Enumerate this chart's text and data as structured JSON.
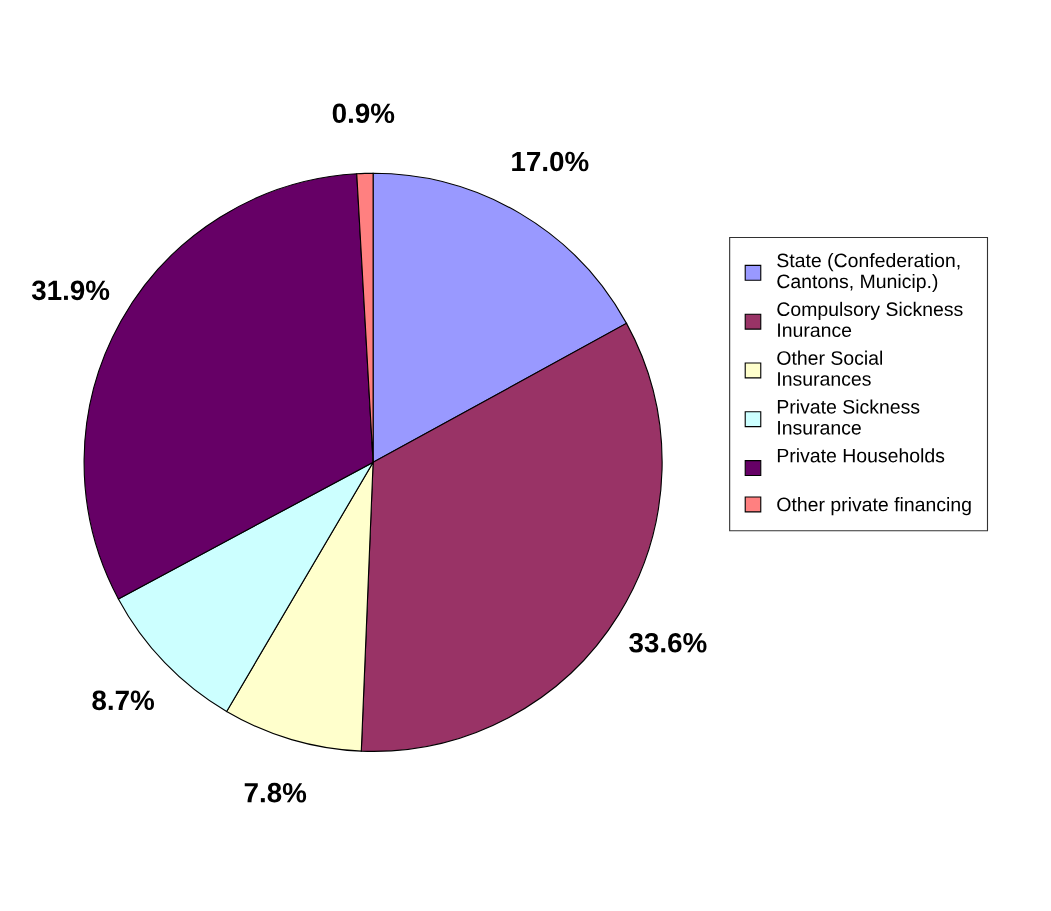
{
  "chart_data": {
    "type": "pie",
    "categories": [
      "State (Confederation,\nCantons, Municip.)",
      "Compulsory Sickness\nInurance",
      "Other Social\nInsurances",
      "Private Sickness\nInsurance",
      "Private Households\n",
      "Other private financing"
    ],
    "values": [
      17.0,
      33.6,
      7.8,
      8.7,
      31.9,
      0.9
    ],
    "value_labels": [
      "17.0%",
      "33.6%",
      "7.8%",
      "8.7%",
      "31.9%",
      "0.9%"
    ],
    "colors": [
      "#9999ff",
      "#993366",
      "#ffffcc",
      "#ccffff",
      "#660066",
      "#ff8080"
    ],
    "legend": "right"
  }
}
